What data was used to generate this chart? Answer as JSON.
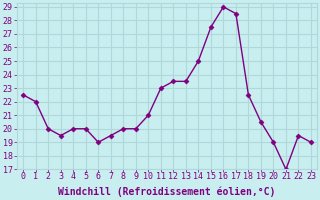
{
  "x": [
    0,
    1,
    2,
    3,
    4,
    5,
    6,
    7,
    8,
    9,
    10,
    11,
    12,
    13,
    14,
    15,
    16,
    17,
    18,
    19,
    20,
    21,
    22,
    23
  ],
  "y": [
    22.5,
    22.0,
    20.0,
    19.5,
    20.0,
    20.0,
    19.0,
    19.5,
    20.0,
    20.0,
    21.0,
    23.0,
    23.5,
    23.5,
    25.0,
    27.5,
    29.0,
    28.5,
    22.5,
    20.5,
    19.0,
    17.0,
    19.5,
    19.0
  ],
  "line_color": "#800080",
  "marker": "D",
  "marker_size": 2.5,
  "line_width": 1.0,
  "bg_color": "#c8eef0",
  "grid_color": "#b0d8da",
  "xlabel": "Windchill (Refroidissement éolien,°C)",
  "xlabel_color": "#800080",
  "xlabel_fontsize": 7,
  "tick_color": "#800080",
  "tick_fontsize": 6,
  "ylim": [
    17,
    29
  ],
  "xlim": [
    -0.5,
    23.5
  ],
  "xtick_labels": [
    "0",
    "1",
    "2",
    "3",
    "4",
    "5",
    "6",
    "7",
    "8",
    "9",
    "10",
    "11",
    "12",
    "13",
    "14",
    "15",
    "16",
    "17",
    "18",
    "19",
    "20",
    "21",
    "22",
    "23"
  ]
}
